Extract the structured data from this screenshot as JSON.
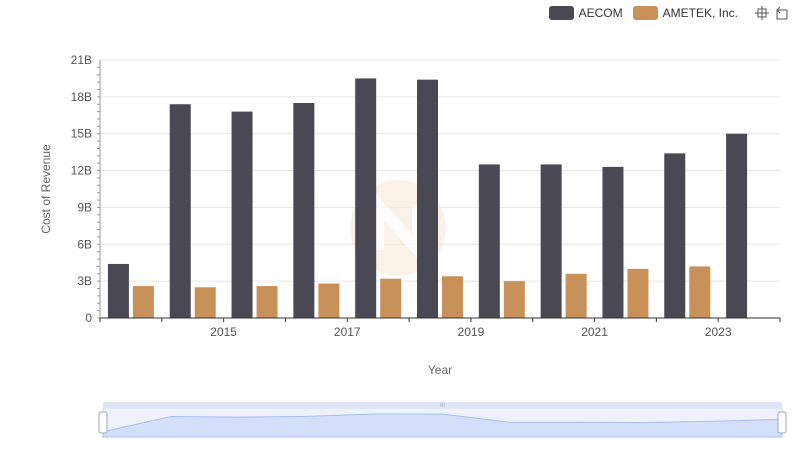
{
  "chart_data": {
    "type": "bar",
    "title": "",
    "xlabel": "Year",
    "ylabel": "Cost of Revenue",
    "x": [
      2014,
      2015,
      2016,
      2017,
      2018,
      2019,
      2020,
      2021,
      2022,
      2023,
      2024
    ],
    "x_tick_labels": [
      "2015",
      "2017",
      "2019",
      "2021",
      "2023"
    ],
    "y_tick_labels": [
      "0",
      "3B",
      "6B",
      "9B",
      "12B",
      "15B",
      "18B",
      "21B"
    ],
    "ylim": [
      0,
      21
    ],
    "y_unit": "B",
    "series": [
      {
        "name": "AECOM",
        "color": "#4a4953",
        "values": [
          4.4,
          17.4,
          16.8,
          17.5,
          19.5,
          19.4,
          12.5,
          12.5,
          12.3,
          13.4,
          15.0
        ]
      },
      {
        "name": "AMETEK, Inc.",
        "color": "#c8915a",
        "values": [
          2.6,
          2.5,
          2.6,
          2.8,
          3.2,
          3.4,
          3.0,
          3.6,
          4.0,
          4.2,
          null
        ]
      }
    ],
    "legend_position": "top-right"
  },
  "legend": {
    "items": [
      {
        "label": "AECOM",
        "color": "#4a4953"
      },
      {
        "label": "AMETEK, Inc.",
        "color": "#c8915a"
      }
    ]
  },
  "toolbox": {
    "zoom_icon": "zoom-icon",
    "restore_icon": "restore-icon"
  },
  "slider": {
    "handle_label": "III"
  }
}
